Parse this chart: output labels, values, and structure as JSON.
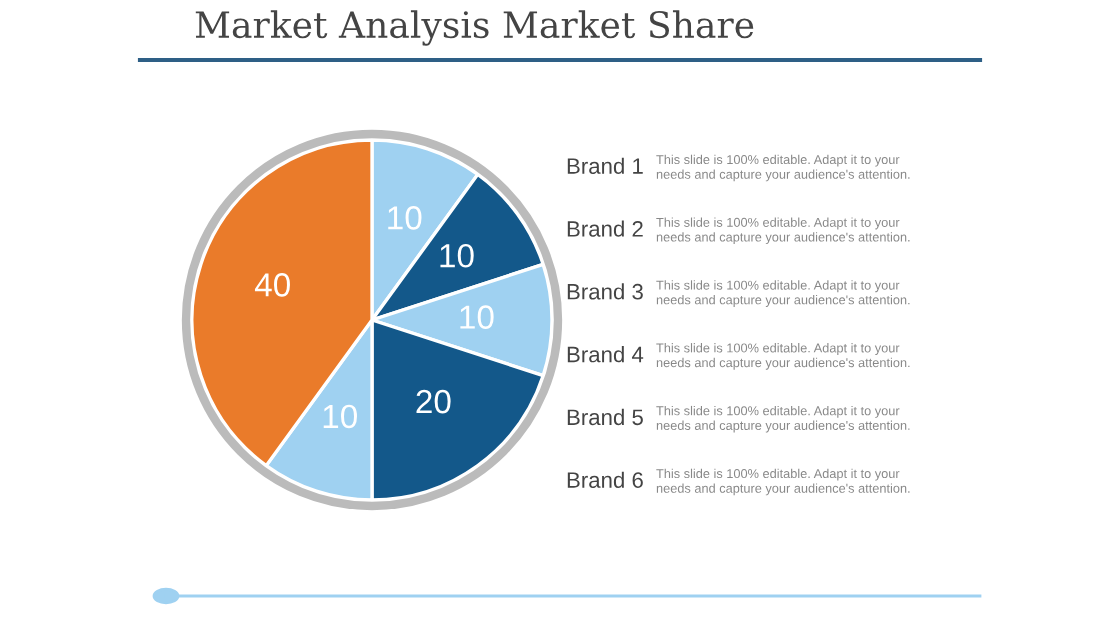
{
  "chart_data": {
    "type": "pie",
    "title": "Market Analysis Market Share",
    "categories": [
      null,
      null,
      null,
      null,
      null,
      null
    ],
    "values": [
      10,
      10,
      10,
      20,
      10,
      40
    ],
    "colors": [
      "#9fd1f1",
      "#13588a",
      "#9fd1f1",
      "#13588a",
      "#9fd1f1",
      "#ea7b2a"
    ],
    "data_labels": true,
    "annotations": [
      "Brand 1",
      "This slide is 100% editable. Adapt it to your\nneeds and capture your audience's attention.",
      "Brand 2",
      "This slide is 100% editable. Adapt it to your\nneeds and capture your audience's attention.",
      "Brand 3",
      "This slide is 100% editable. Adapt it to your\nneeds and capture your audience's attention.",
      "Brand 4",
      "This slide is 100% editable. Adapt it to your\nneeds and capture your audience's attention.",
      "Brand 5",
      "This slide is 100% editable. Adapt it to your\nneeds and capture your audience's attention.",
      "Brand 6",
      "This slide is 100% editable. Adapt it to your\nneeds and capture your audience's attention."
    ]
  }
}
